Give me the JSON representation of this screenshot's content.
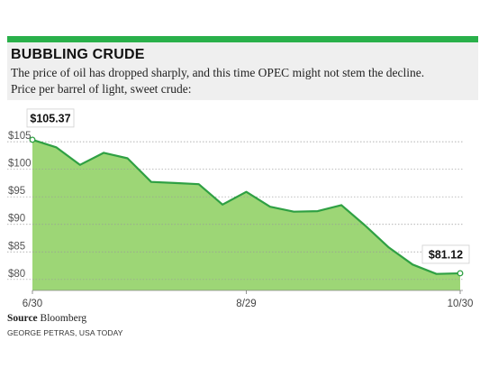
{
  "title": "BUBBLING CRUDE",
  "subtitle_line1": "The price of oil has dropped sharply, and this time OPEC might not stem the decline.",
  "subtitle_line2": "Price per barrel of light, sweet crude:",
  "source_label": "Source",
  "source_name": "Bloomberg",
  "credit": "GEORGE PETRAS, USA TODAY",
  "colors": {
    "accent": "#29b04a",
    "fill": "#9dd676",
    "line": "#2fa043",
    "header_bg": "#efefef"
  },
  "chart_data": {
    "type": "area",
    "title": "BUBBLING CRUDE",
    "xlabel": "",
    "ylabel": "",
    "ylim": [
      78,
      106.5
    ],
    "yticks": [
      80,
      85,
      90,
      95,
      100,
      105
    ],
    "ytick_labels": [
      "$80",
      "$85",
      "$90",
      "$95",
      "$100",
      "$105"
    ],
    "x_tick_labels": [
      {
        "index": 0,
        "label": "6/30"
      },
      {
        "index": 9,
        "label": "8/29"
      },
      {
        "index": 18,
        "label": "10/30"
      }
    ],
    "values": [
      105.37,
      104.0,
      100.8,
      103.0,
      102.0,
      97.7,
      97.5,
      97.3,
      93.6,
      95.9,
      93.2,
      92.3,
      92.4,
      93.5,
      89.8,
      85.8,
      82.7,
      81.0,
      81.12
    ],
    "annotations": [
      {
        "index": 0,
        "text": "$105.37"
      },
      {
        "index": 18,
        "text": "$81.12"
      }
    ],
    "grid": true,
    "legend": "none"
  }
}
